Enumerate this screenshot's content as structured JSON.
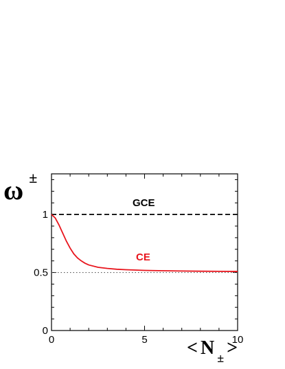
{
  "chart_data": {
    "type": "line",
    "title": "",
    "ylabel": {
      "symbol": "ω",
      "superscript": "±"
    },
    "xlabel": {
      "open": "<",
      "symbol": "N",
      "subscript": "±",
      "close": ">"
    },
    "xlim": [
      0,
      10
    ],
    "ylim": [
      0,
      1.35
    ],
    "x_ticks": [
      0,
      5,
      10
    ],
    "x_tick_labels": [
      "0",
      "5",
      "10"
    ],
    "y_ticks": [
      0,
      0.5,
      1
    ],
    "y_tick_labels": [
      "0",
      "0.5",
      "1"
    ],
    "grid": false,
    "series": [
      {
        "name": "GCE",
        "style": "dashed",
        "color": "#000000",
        "x": [
          0,
          10
        ],
        "y": [
          1,
          1
        ]
      },
      {
        "name": "CE",
        "style": "solid",
        "color": "#e8141c",
        "x": [
          0,
          0.2,
          0.4,
          0.6,
          0.8,
          1.0,
          1.2,
          1.4,
          1.6,
          1.8,
          2.0,
          2.5,
          3.0,
          3.5,
          4.0,
          5.0,
          6.0,
          7.0,
          8.0,
          9.0,
          10.0
        ],
        "y": [
          1.0,
          0.97,
          0.91,
          0.84,
          0.77,
          0.71,
          0.66,
          0.625,
          0.6,
          0.58,
          0.565,
          0.545,
          0.535,
          0.528,
          0.524,
          0.518,
          0.515,
          0.513,
          0.511,
          0.51,
          0.509
        ]
      },
      {
        "name": "",
        "style": "dotted",
        "color": "#555555",
        "x": [
          0,
          10
        ],
        "y": [
          0.5,
          0.5
        ]
      }
    ],
    "annotations": [
      {
        "text": "GCE",
        "color": "#000000"
      },
      {
        "text": "CE",
        "color": "#e8141c"
      }
    ]
  }
}
